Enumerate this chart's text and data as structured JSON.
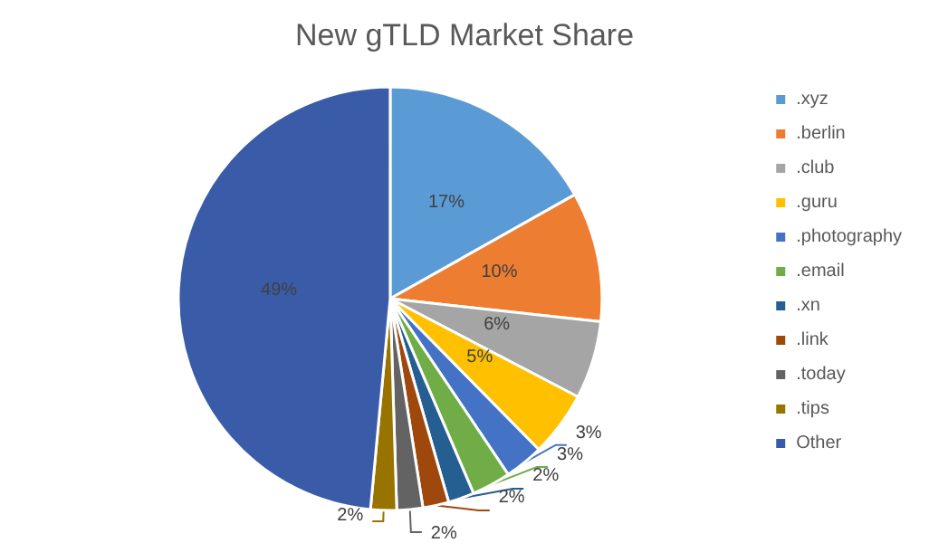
{
  "chart_data": {
    "type": "pie",
    "title": "New gTLD Market Share",
    "categories": [
      ".xyz",
      ".berlin",
      ".club",
      ".guru",
      ".photography",
      ".email",
      ".xn",
      ".link",
      ".today",
      ".tips",
      "Other"
    ],
    "values": [
      17,
      10,
      6,
      5,
      3,
      3,
      2,
      2,
      2,
      2,
      49
    ],
    "colors": [
      "#5b9bd5",
      "#ed7d31",
      "#a5a5a5",
      "#ffc000",
      "#4472c4",
      "#70ad47",
      "#255e91",
      "#9e480e",
      "#636363",
      "#997300",
      "#3a5ca8"
    ],
    "value_labels": [
      "17%",
      "10%",
      "6%",
      "5%",
      "3%",
      "3%",
      "2%",
      "2%",
      "2%",
      "2%",
      "49%"
    ],
    "legend": "right"
  }
}
